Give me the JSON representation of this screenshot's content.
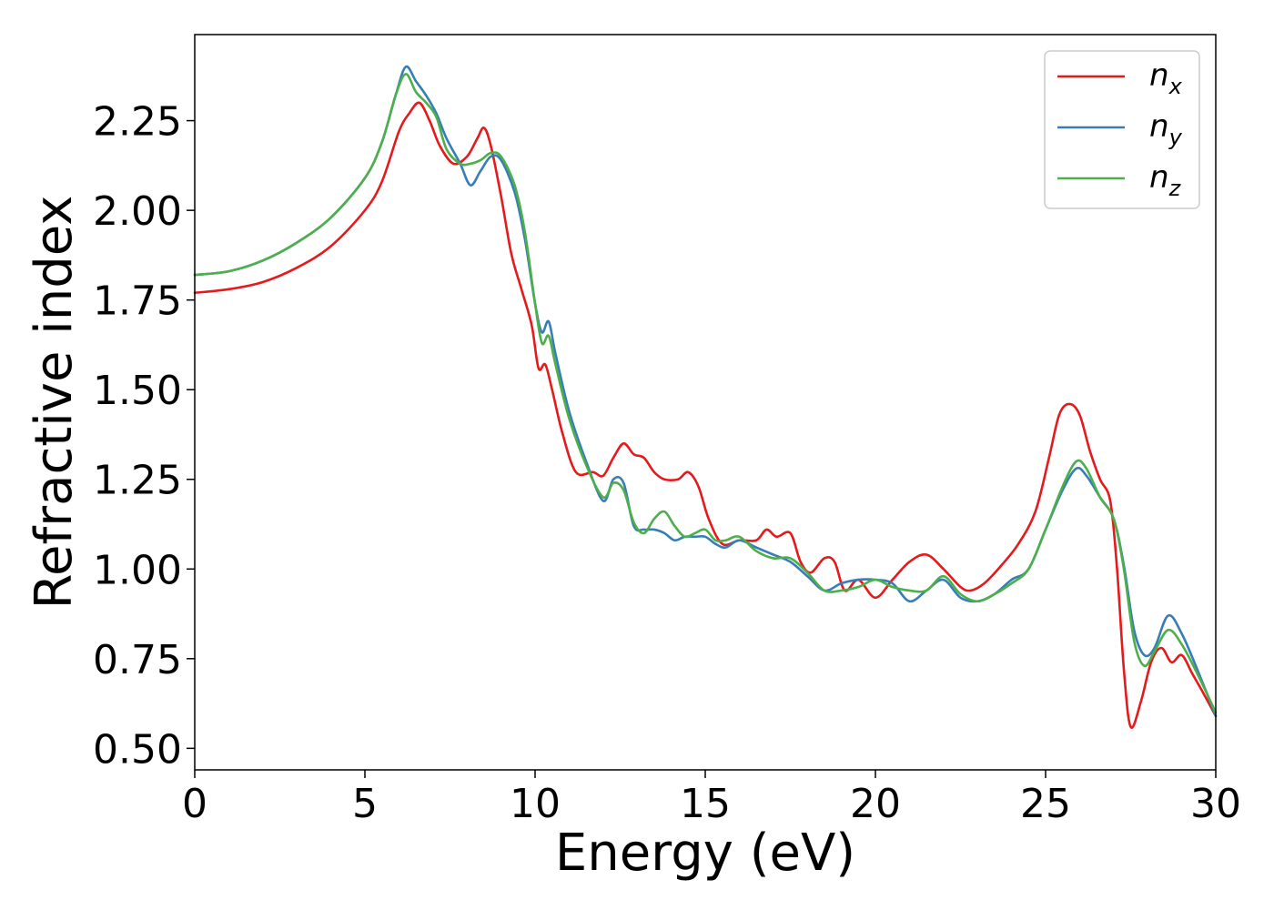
{
  "chart_data": {
    "type": "line",
    "title": "",
    "xlabel": "Energy (eV)",
    "ylabel": "Refractive index",
    "xlim": [
      0,
      30
    ],
    "ylim": [
      0.44,
      2.49
    ],
    "xticks": [
      0,
      5,
      10,
      15,
      20,
      25,
      30
    ],
    "xtick_labels": [
      "0",
      "5",
      "10",
      "15",
      "20",
      "25",
      "30"
    ],
    "yticks": [
      0.5,
      0.75,
      1.0,
      1.25,
      1.5,
      1.75,
      2.0,
      2.25
    ],
    "ytick_labels": [
      "0.50",
      "0.75",
      "1.00",
      "1.25",
      "1.50",
      "1.75",
      "2.00",
      "2.25"
    ],
    "grid": false,
    "legend_position": "top-right",
    "series": [
      {
        "name": "n_x",
        "label_base": "n",
        "label_sub": "x",
        "color": "#e41a1c",
        "x": [
          0,
          1,
          2,
          3,
          4,
          5,
          5.5,
          6,
          6.3,
          6.6,
          6.9,
          7.2,
          7.6,
          8.0,
          8.3,
          8.5,
          8.7,
          9.0,
          9.3,
          9.6,
          9.9,
          10.1,
          10.3,
          10.5,
          10.8,
          11.2,
          11.7,
          12.0,
          12.3,
          12.6,
          12.9,
          13.2,
          13.5,
          13.8,
          14.2,
          14.5,
          14.8,
          15.1,
          15.5,
          16.0,
          16.5,
          16.8,
          17.1,
          17.5,
          17.8,
          18.1,
          18.5,
          18.8,
          19.1,
          19.5,
          20.0,
          20.5,
          21.0,
          21.5,
          22.0,
          22.5,
          22.8,
          23.2,
          23.7,
          24.2,
          24.7,
          25.1,
          25.4,
          25.7,
          26.0,
          26.3,
          26.6,
          26.9,
          27.1,
          27.3,
          27.5,
          27.8,
          28.1,
          28.4,
          28.7,
          29.0,
          29.3,
          29.6,
          30.0
        ],
        "y": [
          1.77,
          1.78,
          1.8,
          1.84,
          1.9,
          2.0,
          2.08,
          2.22,
          2.27,
          2.3,
          2.25,
          2.18,
          2.13,
          2.15,
          2.2,
          2.23,
          2.18,
          2.04,
          1.88,
          1.78,
          1.68,
          1.56,
          1.57,
          1.5,
          1.38,
          1.27,
          1.27,
          1.26,
          1.31,
          1.35,
          1.32,
          1.31,
          1.27,
          1.25,
          1.25,
          1.27,
          1.23,
          1.14,
          1.07,
          1.08,
          1.08,
          1.11,
          1.09,
          1.1,
          1.02,
          0.99,
          1.03,
          1.02,
          0.94,
          0.97,
          0.92,
          0.97,
          1.02,
          1.04,
          1.0,
          0.95,
          0.94,
          0.96,
          1.01,
          1.07,
          1.16,
          1.31,
          1.43,
          1.46,
          1.43,
          1.33,
          1.25,
          1.19,
          1.0,
          0.72,
          0.56,
          0.63,
          0.74,
          0.78,
          0.74,
          0.76,
          0.71,
          0.66,
          0.59
        ]
      },
      {
        "name": "n_y",
        "label_base": "n",
        "label_sub": "y",
        "color": "#377eb8",
        "x": [
          0,
          1,
          2,
          3,
          4,
          5,
          5.5,
          5.9,
          6.2,
          6.5,
          6.8,
          7.1,
          7.4,
          7.8,
          8.1,
          8.4,
          8.7,
          9.0,
          9.4,
          9.7,
          10.0,
          10.2,
          10.4,
          10.6,
          11.0,
          11.5,
          12.0,
          12.3,
          12.6,
          12.9,
          13.2,
          13.5,
          13.8,
          14.1,
          14.4,
          14.7,
          15.0,
          15.3,
          15.6,
          16.0,
          16.5,
          17.0,
          17.5,
          18.0,
          18.5,
          19.0,
          19.5,
          20.0,
          20.5,
          21.0,
          21.5,
          22.0,
          22.5,
          23.0,
          23.5,
          24.0,
          24.5,
          25.0,
          25.5,
          25.9,
          26.2,
          26.6,
          27.0,
          27.3,
          27.6,
          27.9,
          28.2,
          28.6,
          29.0,
          29.5,
          30.0
        ],
        "y": [
          1.82,
          1.83,
          1.86,
          1.91,
          1.98,
          2.09,
          2.19,
          2.32,
          2.4,
          2.36,
          2.32,
          2.27,
          2.2,
          2.13,
          2.07,
          2.11,
          2.15,
          2.14,
          2.05,
          1.92,
          1.74,
          1.66,
          1.69,
          1.6,
          1.44,
          1.3,
          1.19,
          1.25,
          1.24,
          1.12,
          1.11,
          1.11,
          1.1,
          1.08,
          1.09,
          1.09,
          1.09,
          1.07,
          1.06,
          1.08,
          1.06,
          1.04,
          1.02,
          0.98,
          0.94,
          0.96,
          0.97,
          0.97,
          0.96,
          0.91,
          0.94,
          0.97,
          0.92,
          0.91,
          0.93,
          0.97,
          1.0,
          1.11,
          1.22,
          1.28,
          1.26,
          1.2,
          1.14,
          1.01,
          0.83,
          0.76,
          0.78,
          0.87,
          0.82,
          0.71,
          0.59
        ]
      },
      {
        "name": "n_z",
        "label_base": "n",
        "label_sub": "z",
        "color": "#4daf4a",
        "x": [
          0,
          1,
          2,
          3,
          4,
          5,
          5.5,
          5.9,
          6.2,
          6.5,
          6.8,
          7.1,
          7.4,
          7.8,
          8.1,
          8.4,
          8.7,
          9.0,
          9.4,
          9.7,
          10.0,
          10.2,
          10.4,
          10.6,
          11.0,
          11.5,
          12.0,
          12.3,
          12.6,
          12.9,
          13.2,
          13.5,
          13.8,
          14.1,
          14.4,
          14.7,
          15.0,
          15.3,
          15.6,
          16.0,
          16.5,
          17.0,
          17.5,
          18.0,
          18.5,
          19.0,
          19.5,
          20.0,
          20.5,
          21.0,
          21.5,
          22.0,
          22.5,
          23.0,
          23.5,
          24.0,
          24.5,
          25.0,
          25.5,
          25.9,
          26.2,
          26.6,
          27.0,
          27.3,
          27.6,
          27.9,
          28.2,
          28.6,
          29.0,
          29.5,
          30.0
        ],
        "y": [
          1.82,
          1.83,
          1.86,
          1.91,
          1.98,
          2.09,
          2.19,
          2.32,
          2.38,
          2.33,
          2.3,
          2.26,
          2.17,
          2.13,
          2.13,
          2.14,
          2.16,
          2.15,
          2.07,
          1.94,
          1.74,
          1.63,
          1.65,
          1.57,
          1.42,
          1.29,
          1.2,
          1.24,
          1.22,
          1.13,
          1.1,
          1.14,
          1.16,
          1.12,
          1.09,
          1.1,
          1.11,
          1.08,
          1.08,
          1.09,
          1.05,
          1.03,
          1.03,
          0.99,
          0.94,
          0.94,
          0.95,
          0.97,
          0.95,
          0.94,
          0.94,
          0.98,
          0.93,
          0.91,
          0.93,
          0.96,
          1.0,
          1.11,
          1.23,
          1.3,
          1.28,
          1.2,
          1.14,
          1.0,
          0.8,
          0.73,
          0.77,
          0.83,
          0.79,
          0.7,
          0.6
        ]
      }
    ]
  }
}
